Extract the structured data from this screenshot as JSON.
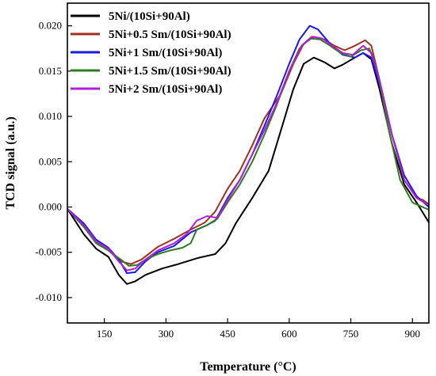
{
  "chart_data": {
    "type": "line",
    "xlabel": "Temperature (°C)",
    "ylabel": "TCD signal (a.u.)",
    "xlim": [
      60,
      940
    ],
    "ylim": [
      -0.0128,
      0.0225
    ],
    "xticks": [
      150,
      300,
      450,
      600,
      750,
      900
    ],
    "yticks": [
      -0.01,
      -0.005,
      0.0,
      0.005,
      0.01,
      0.015,
      0.02
    ],
    "x_tick_labels": [
      "150",
      "300",
      "450",
      "600",
      "750",
      "900"
    ],
    "y_tick_labels": [
      "-0.010",
      "-0.005",
      "0.000",
      "0.005",
      "0.010",
      "0.015",
      "0.020"
    ],
    "grid": false,
    "legend_position": "top-left",
    "series": [
      {
        "name": "5Ni/(10Si+90Al)",
        "color": "#000000",
        "points": [
          [
            60,
            -0.0002
          ],
          [
            100,
            -0.003
          ],
          [
            130,
            -0.0046
          ],
          [
            160,
            -0.0055
          ],
          [
            185,
            -0.0075
          ],
          [
            205,
            -0.0085
          ],
          [
            225,
            -0.0082
          ],
          [
            250,
            -0.0075
          ],
          [
            290,
            -0.0068
          ],
          [
            330,
            -0.0063
          ],
          [
            380,
            -0.0056
          ],
          [
            420,
            -0.0052
          ],
          [
            445,
            -0.004
          ],
          [
            470,
            -0.0018
          ],
          [
            510,
            0.001
          ],
          [
            550,
            0.004
          ],
          [
            580,
            0.0085
          ],
          [
            610,
            0.013
          ],
          [
            635,
            0.0158
          ],
          [
            660,
            0.0165
          ],
          [
            685,
            0.016
          ],
          [
            710,
            0.0153
          ],
          [
            730,
            0.0157
          ],
          [
            760,
            0.0165
          ],
          [
            780,
            0.017
          ],
          [
            800,
            0.0163
          ],
          [
            820,
            0.013
          ],
          [
            850,
            0.007
          ],
          [
            880,
            0.0025
          ],
          [
            910,
            0.0005
          ],
          [
            940,
            -0.0017
          ]
        ]
      },
      {
        "name": "5Ni+0.5 Sm/(10Si+90Al)",
        "color": "#a0301e",
        "points": [
          [
            60,
            -0.0002
          ],
          [
            100,
            -0.002
          ],
          [
            130,
            -0.004
          ],
          [
            160,
            -0.0048
          ],
          [
            190,
            -0.006
          ],
          [
            215,
            -0.0063
          ],
          [
            240,
            -0.0058
          ],
          [
            280,
            -0.0044
          ],
          [
            320,
            -0.0035
          ],
          [
            360,
            -0.0025
          ],
          [
            395,
            -0.0017
          ],
          [
            420,
            -0.0005
          ],
          [
            450,
            0.002
          ],
          [
            480,
            0.004
          ],
          [
            510,
            0.0068
          ],
          [
            540,
            0.0098
          ],
          [
            580,
            0.0125
          ],
          [
            610,
            0.0158
          ],
          [
            635,
            0.018
          ],
          [
            660,
            0.0188
          ],
          [
            685,
            0.0185
          ],
          [
            710,
            0.0178
          ],
          [
            735,
            0.0173
          ],
          [
            760,
            0.0178
          ],
          [
            785,
            0.0184
          ],
          [
            800,
            0.0178
          ],
          [
            820,
            0.014
          ],
          [
            850,
            0.008
          ],
          [
            880,
            0.003
          ],
          [
            910,
            0.001
          ],
          [
            925,
            0.0008
          ],
          [
            940,
            0.0003
          ]
        ]
      },
      {
        "name": "5Ni+1 Sm/(10Si+90Al)",
        "color": "#1a1ae6",
        "points": [
          [
            60,
            -0.0002
          ],
          [
            100,
            -0.0018
          ],
          [
            130,
            -0.0036
          ],
          [
            160,
            -0.0045
          ],
          [
            185,
            -0.0058
          ],
          [
            205,
            -0.0073
          ],
          [
            225,
            -0.0072
          ],
          [
            250,
            -0.006
          ],
          [
            280,
            -0.005
          ],
          [
            320,
            -0.0043
          ],
          [
            360,
            -0.0028
          ],
          [
            400,
            -0.002
          ],
          [
            420,
            -0.0015
          ],
          [
            450,
            0.001
          ],
          [
            480,
            0.003
          ],
          [
            510,
            0.0058
          ],
          [
            540,
            0.009
          ],
          [
            570,
            0.0123
          ],
          [
            600,
            0.0158
          ],
          [
            625,
            0.0185
          ],
          [
            650,
            0.02
          ],
          [
            670,
            0.0196
          ],
          [
            700,
            0.018
          ],
          [
            730,
            0.0168
          ],
          [
            760,
            0.0165
          ],
          [
            780,
            0.017
          ],
          [
            800,
            0.0165
          ],
          [
            820,
            0.0135
          ],
          [
            850,
            0.008
          ],
          [
            880,
            0.0035
          ],
          [
            910,
            0.0012
          ],
          [
            940,
            0.0
          ]
        ]
      },
      {
        "name": "5Ni+1.5 Sm/(10Si+90Al)",
        "color": "#2e7d1e",
        "points": [
          [
            60,
            -0.0002
          ],
          [
            100,
            -0.0022
          ],
          [
            130,
            -0.004
          ],
          [
            160,
            -0.0048
          ],
          [
            190,
            -0.0058
          ],
          [
            210,
            -0.0065
          ],
          [
            230,
            -0.0064
          ],
          [
            250,
            -0.0058
          ],
          [
            280,
            -0.0052
          ],
          [
            310,
            -0.0048
          ],
          [
            340,
            -0.0045
          ],
          [
            360,
            -0.004
          ],
          [
            375,
            -0.0025
          ],
          [
            400,
            -0.002
          ],
          [
            425,
            -0.0013
          ],
          [
            450,
            0.0005
          ],
          [
            480,
            0.0025
          ],
          [
            510,
            0.005
          ],
          [
            540,
            0.008
          ],
          [
            570,
            0.0113
          ],
          [
            600,
            0.015
          ],
          [
            625,
            0.0175
          ],
          [
            650,
            0.0186
          ],
          [
            675,
            0.0185
          ],
          [
            700,
            0.0178
          ],
          [
            725,
            0.017
          ],
          [
            750,
            0.0166
          ],
          [
            775,
            0.0173
          ],
          [
            795,
            0.0175
          ],
          [
            815,
            0.015
          ],
          [
            840,
            0.009
          ],
          [
            870,
            0.003
          ],
          [
            900,
            0.0005
          ],
          [
            920,
            0.0001
          ],
          [
            940,
            -0.0003
          ]
        ]
      },
      {
        "name": "5Ni+2 Sm/(10Si+90Al)",
        "color": "#b01ed8",
        "points": [
          [
            60,
            -0.0002
          ],
          [
            100,
            -0.002
          ],
          [
            130,
            -0.0038
          ],
          [
            160,
            -0.0046
          ],
          [
            185,
            -0.006
          ],
          [
            205,
            -0.007
          ],
          [
            225,
            -0.0068
          ],
          [
            250,
            -0.0058
          ],
          [
            280,
            -0.0048
          ],
          [
            320,
            -0.004
          ],
          [
            350,
            -0.003
          ],
          [
            375,
            -0.0015
          ],
          [
            400,
            -0.001
          ],
          [
            425,
            -0.0012
          ],
          [
            450,
            0.0008
          ],
          [
            480,
            0.003
          ],
          [
            510,
            0.0058
          ],
          [
            540,
            0.0085
          ],
          [
            570,
            0.0115
          ],
          [
            600,
            0.015
          ],
          [
            630,
            0.0178
          ],
          [
            655,
            0.0188
          ],
          [
            680,
            0.0186
          ],
          [
            705,
            0.0178
          ],
          [
            730,
            0.017
          ],
          [
            755,
            0.0168
          ],
          [
            780,
            0.0178
          ],
          [
            800,
            0.017
          ],
          [
            820,
            0.014
          ],
          [
            850,
            0.008
          ],
          [
            880,
            0.003
          ],
          [
            910,
            0.001
          ],
          [
            940,
            0.0002
          ]
        ]
      }
    ]
  }
}
